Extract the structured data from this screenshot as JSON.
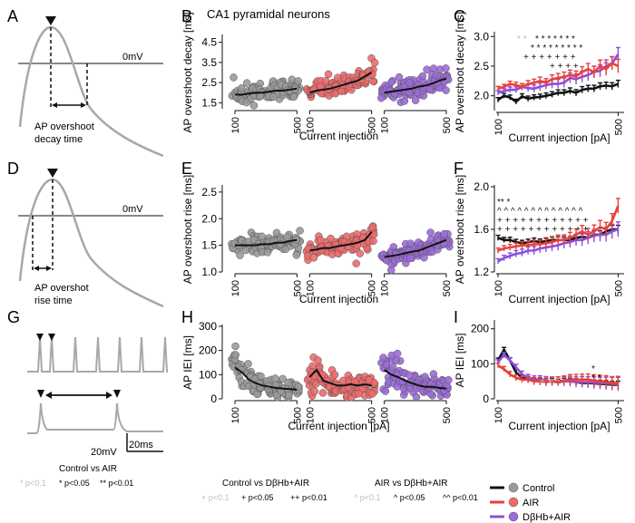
{
  "figure": {
    "panel_letters": [
      "A",
      "B",
      "C",
      "D",
      "E",
      "F",
      "G",
      "H",
      "I"
    ],
    "header": "CA1 pyramidal neurons",
    "colors": {
      "control": "#9a9a9a",
      "control_line": "#111111",
      "air": "#ef6a6a",
      "air_line": "#e8403c",
      "dbhb": "#9b6bd8",
      "dbhb_line": "#8a4fe0",
      "trace": "#a8a8a8",
      "sig_grey": "#bdbdbd"
    }
  },
  "schematics": {
    "zero_label_a": "0mV",
    "caption_a": [
      "AP overshoot",
      "decay time"
    ],
    "zero_label_d": "0mV",
    "caption_d": [
      "AP overshot",
      "rise time"
    ],
    "scale_v": "20mV",
    "scale_t": "20ms"
  },
  "legend": {
    "entries": [
      {
        "label": "Control",
        "color": "#111111",
        "marker": "#9a9a9a"
      },
      {
        "label": "AIR",
        "color": "#e8403c",
        "marker": "#ef6a6a"
      },
      {
        "label": "DβHb+AIR",
        "color": "#8a4fe0",
        "marker": "#9b6bd8"
      }
    ],
    "sig1_title": "Control vs AIR",
    "sig1_items": [
      "* p<0.1",
      "* p<0.05",
      "** p<0.01"
    ],
    "sig2_title": "Control vs DβHb+AIR",
    "sig2_items": [
      "+ p<0.1",
      "+ p<0.05",
      "++ p<0.01"
    ],
    "sig3_title": "AIR vs DβHb+AIR",
    "sig3_items": [
      "^ p<0.1",
      "^ p<0.05",
      "^^ p<0.01"
    ]
  },
  "chart_data": [
    {
      "id": "B",
      "type": "scatter",
      "title": "",
      "xlabel": "Current injection",
      "ylabel": "AP overshoot decay [ms]",
      "x_ticks": [
        "100",
        "500"
      ],
      "yticks": [
        1.5,
        2.5,
        3.5,
        4.5
      ],
      "ylim": [
        1.2,
        4.8
      ],
      "groups": [
        {
          "name": "Control",
          "mean": [
            1.9,
            1.9,
            1.95,
            2.0,
            2.0,
            2.05,
            2.1,
            2.1,
            2.15,
            2.2
          ]
        },
        {
          "name": "AIR",
          "mean": [
            2.0,
            2.1,
            2.15,
            2.2,
            2.3,
            2.4,
            2.5,
            2.6,
            2.8,
            3.0
          ]
        },
        {
          "name": "DβHb+AIR",
          "mean": [
            2.0,
            2.05,
            2.1,
            2.15,
            2.2,
            2.3,
            2.35,
            2.45,
            2.6,
            2.7
          ]
        }
      ]
    },
    {
      "id": "C",
      "type": "line",
      "title": "",
      "xlabel": "Current injection [pA]",
      "ylabel": "AP overshoot decay [ms]",
      "x_ticks": [
        "100",
        "500"
      ],
      "yticks": [
        2.0,
        2.5,
        3.0
      ],
      "ylim": [
        1.75,
        3.05
      ],
      "xlim": [
        100,
        520
      ],
      "x": [
        100,
        120,
        140,
        160,
        180,
        200,
        220,
        240,
        260,
        280,
        300,
        320,
        340,
        360,
        380,
        400,
        420,
        440,
        460,
        480,
        500
      ],
      "series": [
        {
          "name": "Control",
          "values": [
            1.93,
            2.0,
            1.97,
            1.9,
            1.99,
            1.95,
            1.97,
            1.98,
            2.0,
            2.02,
            2.05,
            2.05,
            2.08,
            2.05,
            2.1,
            2.12,
            2.12,
            2.16,
            2.17,
            2.16,
            2.2
          ]
        },
        {
          "name": "AIR",
          "values": [
            2.12,
            2.15,
            2.2,
            2.18,
            2.15,
            2.2,
            2.22,
            2.25,
            2.22,
            2.28,
            2.3,
            2.32,
            2.35,
            2.33,
            2.4,
            2.45,
            2.4,
            2.5,
            2.45,
            2.55,
            2.5
          ]
        },
        {
          "name": "DβHb+AIR",
          "values": [
            2.05,
            2.08,
            2.1,
            2.1,
            2.15,
            2.13,
            2.12,
            2.15,
            2.18,
            2.2,
            2.2,
            2.22,
            2.3,
            2.28,
            2.32,
            2.35,
            2.4,
            2.42,
            2.5,
            2.55,
            2.7
          ]
        }
      ]
    },
    {
      "id": "E",
      "type": "scatter",
      "title": "",
      "xlabel": "Current injection",
      "ylabel": "AP overshoot rise [ms]",
      "x_ticks": [
        "100",
        "500"
      ],
      "yticks": [
        1.0,
        1.5,
        2.0,
        2.5
      ],
      "ylim": [
        1.0,
        2.6
      ],
      "groups": [
        {
          "name": "Control",
          "mean": [
            1.5,
            1.5,
            1.5,
            1.5,
            1.52,
            1.52,
            1.55,
            1.55,
            1.58,
            1.6
          ]
        },
        {
          "name": "AIR",
          "mean": [
            1.4,
            1.42,
            1.45,
            1.45,
            1.48,
            1.5,
            1.52,
            1.55,
            1.6,
            1.75
          ]
        },
        {
          "name": "DβHb+AIR",
          "mean": [
            1.28,
            1.3,
            1.32,
            1.35,
            1.38,
            1.4,
            1.45,
            1.5,
            1.55,
            1.6
          ]
        }
      ]
    },
    {
      "id": "F",
      "type": "line",
      "title": "",
      "xlabel": "Current injection [pA]",
      "ylabel": "AP overshoot rise [ms]",
      "x_ticks": [
        "100",
        "500"
      ],
      "yticks": [
        1.2,
        1.6,
        2.0
      ],
      "ylim": [
        1.2,
        2.0
      ],
      "xlim": [
        100,
        520
      ],
      "x": [
        100,
        120,
        140,
        160,
        180,
        200,
        220,
        240,
        260,
        280,
        300,
        320,
        340,
        360,
        380,
        400,
        420,
        440,
        460,
        480,
        500
      ],
      "series": [
        {
          "name": "Control",
          "values": [
            1.52,
            1.5,
            1.5,
            1.48,
            1.47,
            1.48,
            1.49,
            1.48,
            1.49,
            1.5,
            1.5,
            1.5,
            1.5,
            1.52,
            1.53,
            1.52,
            1.55,
            1.55,
            1.58,
            1.6,
            1.6
          ]
        },
        {
          "name": "AIR",
          "values": [
            1.4,
            1.42,
            1.43,
            1.44,
            1.45,
            1.45,
            1.46,
            1.46,
            1.47,
            1.48,
            1.5,
            1.5,
            1.52,
            1.55,
            1.58,
            1.55,
            1.58,
            1.62,
            1.6,
            1.68,
            1.82
          ]
        },
        {
          "name": "DβHb+AIR",
          "values": [
            1.3,
            1.33,
            1.35,
            1.37,
            1.38,
            1.4,
            1.4,
            1.42,
            1.43,
            1.44,
            1.45,
            1.47,
            1.48,
            1.5,
            1.5,
            1.52,
            1.54,
            1.55,
            1.55,
            1.58,
            1.6
          ]
        }
      ]
    },
    {
      "id": "H",
      "type": "scatter",
      "title": "",
      "xlabel": "Current injection [pA]",
      "ylabel": "AP IEI [ms]",
      "x_ticks": [
        "100",
        "500"
      ],
      "yticks": [
        0,
        100,
        200,
        300
      ],
      "ylim": [
        0,
        300
      ],
      "groups": [
        {
          "name": "Control",
          "mean": [
            130,
            110,
            80,
            65,
            55,
            50,
            45,
            42,
            40,
            38
          ]
        },
        {
          "name": "AIR",
          "mean": [
            90,
            120,
            75,
            65,
            55,
            55,
            60,
            55,
            60,
            55
          ]
        },
        {
          "name": "DβHb+AIR",
          "mean": [
            120,
            100,
            90,
            75,
            65,
            55,
            50,
            50,
            45,
            42
          ]
        }
      ]
    },
    {
      "id": "I",
      "type": "line",
      "title": "",
      "xlabel": "Current injection [pA]",
      "ylabel": "AP IEI [ms]",
      "x_ticks": [
        "100",
        "500"
      ],
      "yticks": [
        0,
        100,
        200
      ],
      "ylim": [
        0,
        220
      ],
      "xlim": [
        100,
        520
      ],
      "x": [
        100,
        120,
        140,
        160,
        180,
        200,
        220,
        240,
        260,
        280,
        300,
        320,
        340,
        360,
        380,
        400,
        420,
        440,
        460,
        480,
        500
      ],
      "series": [
        {
          "name": "Control",
          "values": [
            110,
            140,
            110,
            75,
            60,
            55,
            52,
            50,
            50,
            50,
            48,
            50,
            50,
            48,
            45,
            45,
            44,
            43,
            42,
            40,
            40
          ]
        },
        {
          "name": "AIR",
          "values": [
            95,
            85,
            70,
            60,
            55,
            55,
            50,
            50,
            48,
            50,
            50,
            52,
            55,
            55,
            55,
            55,
            52,
            50,
            48,
            45,
            45
          ]
        },
        {
          "name": "DβHb+AIR",
          "values": [
            105,
            125,
            110,
            90,
            70,
            60,
            55,
            55,
            52,
            50,
            50,
            50,
            50,
            48,
            48,
            47,
            46,
            45,
            44,
            43,
            42
          ]
        }
      ]
    }
  ]
}
